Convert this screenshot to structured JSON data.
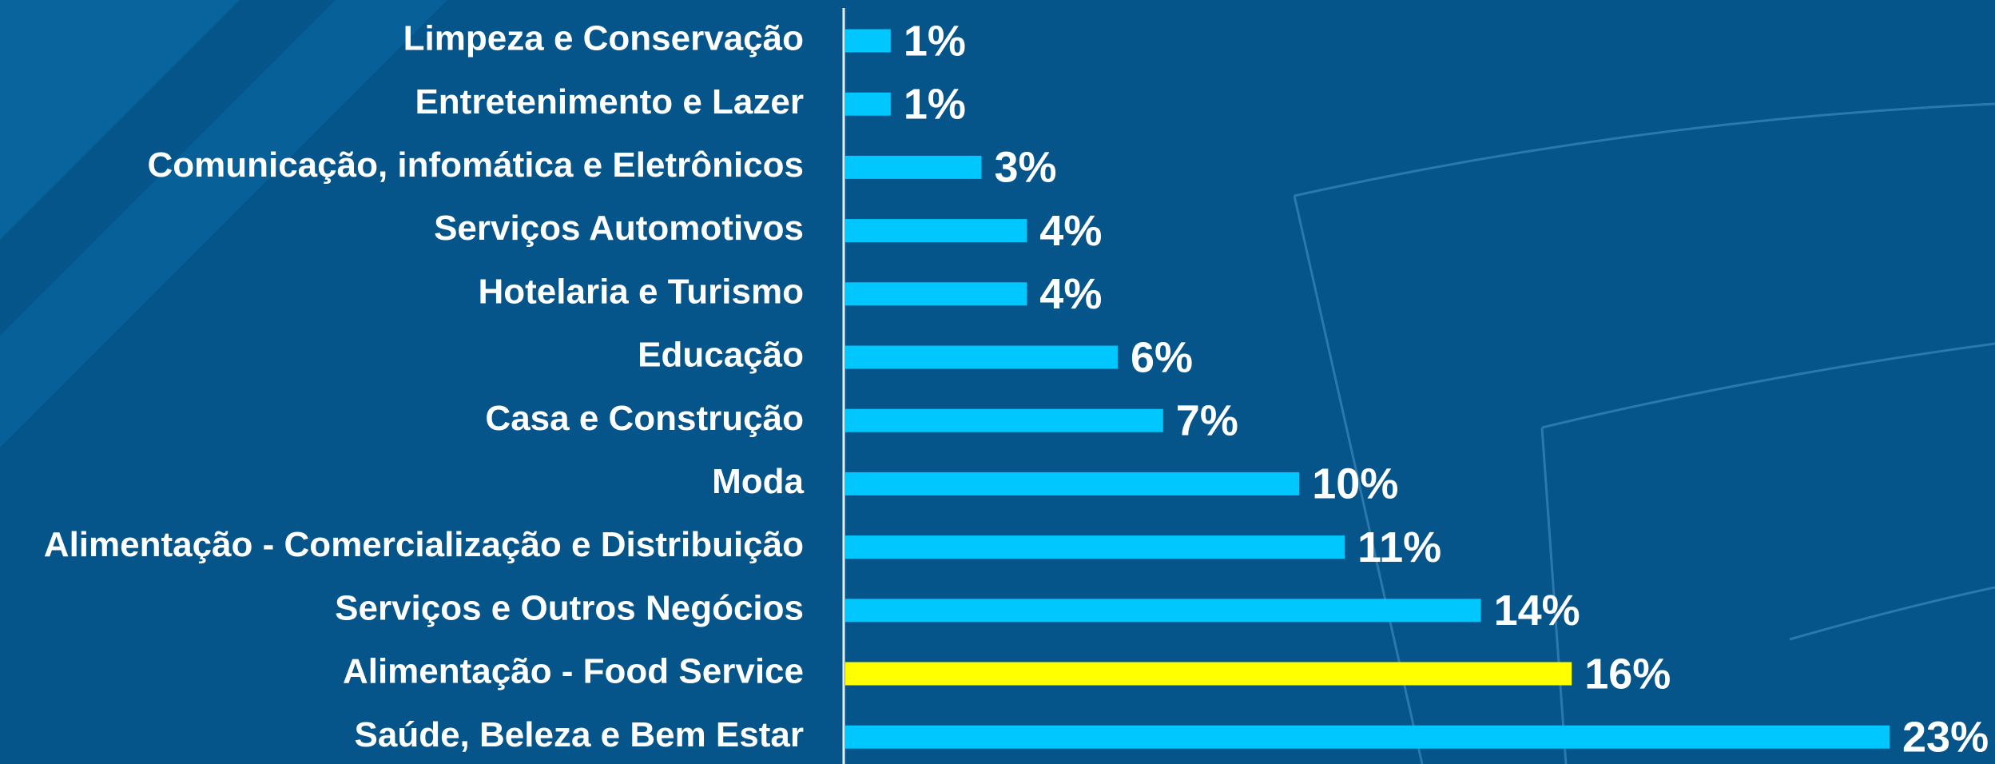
{
  "chart_data": {
    "type": "bar",
    "orientation": "horizontal",
    "categories": [
      "Limpeza e Conservação",
      "Entretenimento e Lazer",
      "Comunicação, infomática e Eletrônicos",
      "Serviços Automotivos",
      "Hotelaria e Turismo",
      "Educação",
      "Casa e Construção",
      "Moda",
      "Alimentação - Comercialização e Distribuição",
      "Serviços e Outros Negócios",
      "Alimentação - Food Service",
      "Saúde, Beleza e Bem Estar"
    ],
    "values": [
      1,
      1,
      3,
      4,
      4,
      6,
      7,
      10,
      11,
      14,
      16,
      23
    ],
    "value_labels": [
      "1%",
      "1%",
      "3%",
      "4%",
      "4%",
      "6%",
      "7%",
      "10%",
      "11%",
      "14%",
      "16%",
      "23%"
    ],
    "colors": [
      "#00c8ff",
      "#00c8ff",
      "#00c8ff",
      "#00c8ff",
      "#00c8ff",
      "#00c8ff",
      "#00c8ff",
      "#00c8ff",
      "#00c8ff",
      "#00c8ff",
      "#ffff00",
      "#00c8ff"
    ]
  }
}
